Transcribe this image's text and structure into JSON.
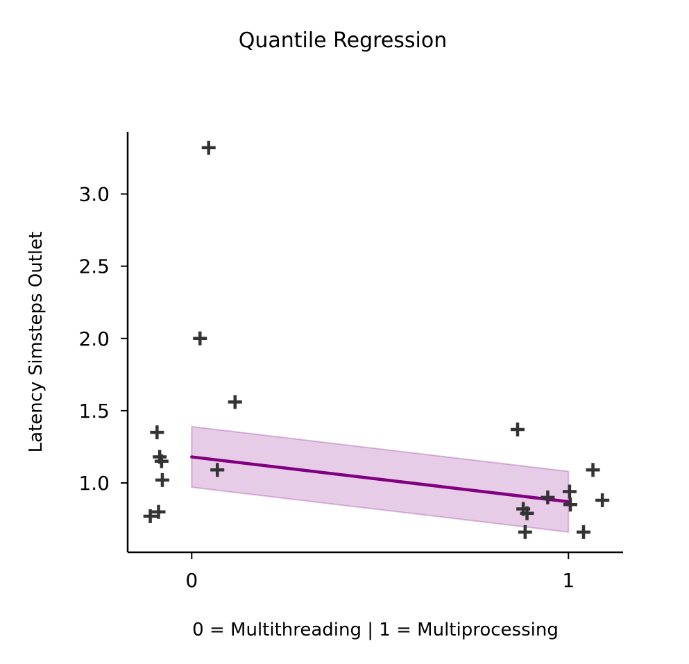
{
  "chart_data": {
    "type": "scatter",
    "title": "Quantile Regression",
    "xlabel": "0 = Multithreading | 1 = Multiprocessing",
    "ylabel": "Latency Simsteps Outlet",
    "xlim": [
      -0.17,
      1.145
    ],
    "ylim": [
      0.52,
      3.43
    ],
    "xticks": [
      0,
      1
    ],
    "xtick_labels": [
      "0",
      "1"
    ],
    "yticks": [
      1.0,
      1.5,
      2.0,
      2.5,
      3.0
    ],
    "ytick_labels": [
      "1.0",
      "1.5",
      "2.0",
      "2.5",
      "3.0"
    ],
    "grid": false,
    "points": [
      {
        "x": 0.045,
        "y": 3.32
      },
      {
        "x": 0.022,
        "y": 2.0
      },
      {
        "x": 0.115,
        "y": 1.56
      },
      {
        "x": -0.092,
        "y": 1.35
      },
      {
        "x": -0.085,
        "y": 1.18
      },
      {
        "x": -0.08,
        "y": 1.15
      },
      {
        "x": 0.068,
        "y": 1.09
      },
      {
        "x": -0.078,
        "y": 1.02
      },
      {
        "x": -0.088,
        "y": 0.8
      },
      {
        "x": -0.11,
        "y": 0.77
      },
      {
        "x": 0.865,
        "y": 1.37
      },
      {
        "x": 0.88,
        "y": 0.82
      },
      {
        "x": 0.89,
        "y": 0.79
      },
      {
        "x": 0.885,
        "y": 0.66
      },
      {
        "x": 0.945,
        "y": 0.9
      },
      {
        "x": 1.003,
        "y": 0.94
      },
      {
        "x": 1.005,
        "y": 0.85
      },
      {
        "x": 1.04,
        "y": 0.66
      },
      {
        "x": 1.065,
        "y": 1.09
      },
      {
        "x": 1.09,
        "y": 0.88
      }
    ],
    "regression_line": {
      "x": [
        0,
        1
      ],
      "y": [
        1.18,
        0.87
      ]
    },
    "confidence_band": {
      "x": [
        0,
        1
      ],
      "upper": [
        1.39,
        1.08
      ],
      "lower": [
        0.97,
        0.66
      ]
    },
    "colors": {
      "points": "#333333",
      "line": "#800080",
      "band": "#800080"
    }
  }
}
